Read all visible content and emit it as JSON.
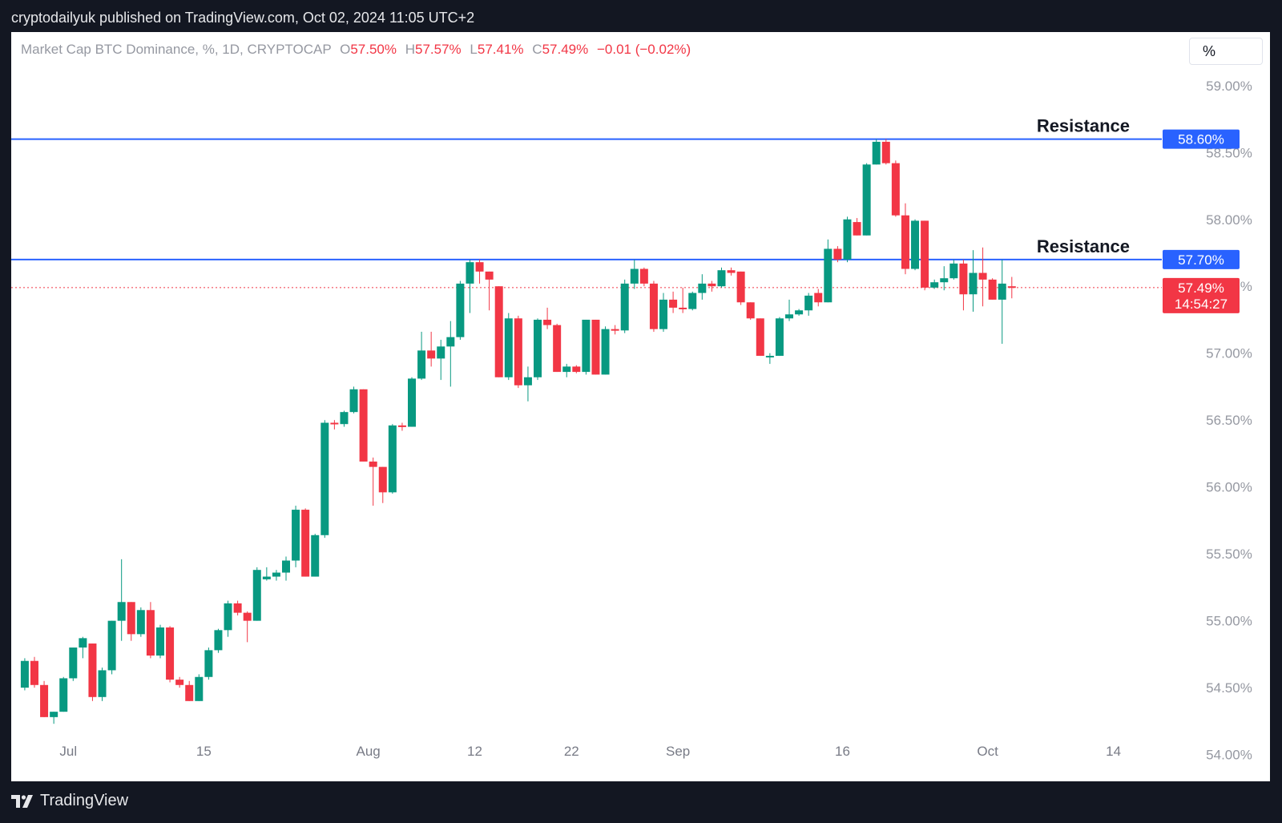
{
  "header": {
    "published_text": "cryptodailyuk published on TradingView.com, Oct 02, 2024 11:05 UTC+2"
  },
  "legend": {
    "symbol": "Market Cap BTC Dominance, %, 1D, CRYPTOCAP",
    "open_label": "O",
    "open": "57.50%",
    "high_label": "H",
    "high": "57.57%",
    "low_label": "L",
    "low": "57.41%",
    "close_label": "C",
    "close": "57.49%",
    "change": "−0.01 (−0.02%)"
  },
  "toolbar": {
    "scale_button": "%"
  },
  "footer": {
    "brand": "TradingView",
    "logo_icon": "tradingview-logo-icon"
  },
  "colors": {
    "up": "#089981",
    "down": "#f23645",
    "line": "#2962ff",
    "text_muted": "#9598a1"
  },
  "chart_data": {
    "type": "candlestick",
    "title": "Market Cap BTC Dominance, %, 1D, CRYPTOCAP",
    "ylim": [
      53.8,
      59.4
    ],
    "y_ticks": [
      "59.00%",
      "58.50%",
      "58.00%",
      "57.50%",
      "57.00%",
      "56.50%",
      "56.00%",
      "55.50%",
      "55.00%",
      "54.50%",
      "54.00%"
    ],
    "y_tick_values": [
      59.0,
      58.5,
      58.0,
      57.5,
      57.0,
      56.5,
      56.0,
      55.5,
      55.0,
      54.5,
      54.0
    ],
    "x_ticks": [
      "Jul",
      "15",
      "Aug",
      "12",
      "22",
      "Sep",
      "16",
      "Oct",
      "14"
    ],
    "x_tick_index": [
      4.5,
      18.5,
      35.5,
      46.5,
      56.5,
      67.5,
      84.5,
      99.5,
      112.5
    ],
    "x_range": [
      -1.4,
      117.5
    ],
    "candles": [
      {
        "o": 54.5,
        "h": 54.72,
        "l": 54.48,
        "c": 54.7
      },
      {
        "o": 54.7,
        "h": 54.73,
        "l": 54.5,
        "c": 54.52
      },
      {
        "o": 54.52,
        "h": 54.55,
        "l": 54.28,
        "c": 54.28
      },
      {
        "o": 54.28,
        "h": 54.32,
        "l": 54.23,
        "c": 54.32
      },
      {
        "o": 54.32,
        "h": 54.58,
        "l": 54.32,
        "c": 54.57
      },
      {
        "o": 54.57,
        "h": 54.8,
        "l": 54.55,
        "c": 54.8
      },
      {
        "o": 54.8,
        "h": 54.88,
        "l": 54.72,
        "c": 54.87
      },
      {
        "o": 54.83,
        "h": 54.83,
        "l": 54.4,
        "c": 54.43
      },
      {
        "o": 54.43,
        "h": 54.65,
        "l": 54.4,
        "c": 54.63
      },
      {
        "o": 54.63,
        "h": 55.0,
        "l": 54.6,
        "c": 55.0
      },
      {
        "o": 55.0,
        "h": 55.46,
        "l": 54.85,
        "c": 55.14
      },
      {
        "o": 55.14,
        "h": 55.14,
        "l": 54.85,
        "c": 54.9
      },
      {
        "o": 54.9,
        "h": 55.1,
        "l": 54.88,
        "c": 55.08
      },
      {
        "o": 55.08,
        "h": 55.14,
        "l": 54.72,
        "c": 54.74
      },
      {
        "o": 54.74,
        "h": 54.97,
        "l": 54.72,
        "c": 54.95
      },
      {
        "o": 54.95,
        "h": 54.96,
        "l": 54.54,
        "c": 54.56
      },
      {
        "o": 54.56,
        "h": 54.58,
        "l": 54.5,
        "c": 54.52
      },
      {
        "o": 54.52,
        "h": 54.55,
        "l": 54.4,
        "c": 54.4
      },
      {
        "o": 54.4,
        "h": 54.6,
        "l": 54.4,
        "c": 54.58
      },
      {
        "o": 54.58,
        "h": 54.8,
        "l": 54.56,
        "c": 54.78
      },
      {
        "o": 54.78,
        "h": 54.94,
        "l": 54.76,
        "c": 54.93
      },
      {
        "o": 54.93,
        "h": 55.15,
        "l": 54.88,
        "c": 55.13
      },
      {
        "o": 55.13,
        "h": 55.15,
        "l": 55.04,
        "c": 55.06
      },
      {
        "o": 55.06,
        "h": 55.07,
        "l": 54.84,
        "c": 55.0
      },
      {
        "o": 55.0,
        "h": 55.4,
        "l": 55.0,
        "c": 55.38
      },
      {
        "o": 55.31,
        "h": 55.4,
        "l": 55.3,
        "c": 55.33
      },
      {
        "o": 55.33,
        "h": 55.38,
        "l": 55.3,
        "c": 55.36
      },
      {
        "o": 55.36,
        "h": 55.48,
        "l": 55.3,
        "c": 55.45
      },
      {
        "o": 55.45,
        "h": 55.86,
        "l": 55.4,
        "c": 55.83
      },
      {
        "o": 55.83,
        "h": 55.84,
        "l": 55.33,
        "c": 55.33
      },
      {
        "o": 55.33,
        "h": 55.65,
        "l": 55.33,
        "c": 55.64
      },
      {
        "o": 55.64,
        "h": 56.5,
        "l": 55.62,
        "c": 56.48
      },
      {
        "o": 56.48,
        "h": 56.5,
        "l": 56.43,
        "c": 56.47
      },
      {
        "o": 56.47,
        "h": 56.57,
        "l": 56.45,
        "c": 56.56
      },
      {
        "o": 56.56,
        "h": 56.75,
        "l": 56.55,
        "c": 56.73
      },
      {
        "o": 56.73,
        "h": 56.73,
        "l": 56.19,
        "c": 56.19
      },
      {
        "o": 56.19,
        "h": 56.22,
        "l": 55.86,
        "c": 56.15
      },
      {
        "o": 56.15,
        "h": 56.15,
        "l": 55.88,
        "c": 55.96
      },
      {
        "o": 55.96,
        "h": 56.47,
        "l": 55.95,
        "c": 56.46
      },
      {
        "o": 56.46,
        "h": 56.48,
        "l": 56.42,
        "c": 56.45
      },
      {
        "o": 56.45,
        "h": 56.82,
        "l": 56.45,
        "c": 56.81
      },
      {
        "o": 56.81,
        "h": 57.16,
        "l": 56.8,
        "c": 57.02
      },
      {
        "o": 57.02,
        "h": 57.16,
        "l": 56.9,
        "c": 56.96
      },
      {
        "o": 56.96,
        "h": 57.1,
        "l": 56.8,
        "c": 57.05
      },
      {
        "o": 57.05,
        "h": 57.24,
        "l": 56.75,
        "c": 57.12
      },
      {
        "o": 57.12,
        "h": 57.54,
        "l": 57.1,
        "c": 57.52
      },
      {
        "o": 57.52,
        "h": 57.7,
        "l": 57.3,
        "c": 57.68
      },
      {
        "o": 57.68,
        "h": 57.7,
        "l": 57.52,
        "c": 57.61
      },
      {
        "o": 57.61,
        "h": 57.61,
        "l": 57.32,
        "c": 57.55
      },
      {
        "o": 57.5,
        "h": 57.5,
        "l": 56.82,
        "c": 56.82
      },
      {
        "o": 56.82,
        "h": 57.3,
        "l": 56.8,
        "c": 57.26
      },
      {
        "o": 57.26,
        "h": 57.28,
        "l": 56.74,
        "c": 56.76
      },
      {
        "o": 56.76,
        "h": 56.9,
        "l": 56.64,
        "c": 56.82
      },
      {
        "o": 56.82,
        "h": 57.26,
        "l": 56.8,
        "c": 57.25
      },
      {
        "o": 57.25,
        "h": 57.34,
        "l": 57.18,
        "c": 57.21
      },
      {
        "o": 57.21,
        "h": 57.22,
        "l": 56.86,
        "c": 56.86
      },
      {
        "o": 56.86,
        "h": 56.92,
        "l": 56.82,
        "c": 56.9
      },
      {
        "o": 56.9,
        "h": 56.91,
        "l": 56.85,
        "c": 56.86
      },
      {
        "o": 56.86,
        "h": 57.25,
        "l": 56.84,
        "c": 57.25
      },
      {
        "o": 57.25,
        "h": 57.25,
        "l": 56.84,
        "c": 56.84
      },
      {
        "o": 56.84,
        "h": 57.2,
        "l": 56.84,
        "c": 57.18
      },
      {
        "o": 57.18,
        "h": 57.21,
        "l": 57.14,
        "c": 57.17
      },
      {
        "o": 57.17,
        "h": 57.55,
        "l": 57.15,
        "c": 57.52
      },
      {
        "o": 57.52,
        "h": 57.7,
        "l": 57.48,
        "c": 57.63
      },
      {
        "o": 57.63,
        "h": 57.64,
        "l": 57.5,
        "c": 57.52
      },
      {
        "o": 57.52,
        "h": 57.54,
        "l": 57.16,
        "c": 57.18
      },
      {
        "o": 57.18,
        "h": 57.45,
        "l": 57.16,
        "c": 57.4
      },
      {
        "o": 57.4,
        "h": 57.46,
        "l": 57.3,
        "c": 57.34
      },
      {
        "o": 57.34,
        "h": 57.49,
        "l": 57.3,
        "c": 57.33
      },
      {
        "o": 57.33,
        "h": 57.46,
        "l": 57.32,
        "c": 57.45
      },
      {
        "o": 57.45,
        "h": 57.59,
        "l": 57.4,
        "c": 57.52
      },
      {
        "o": 57.52,
        "h": 57.54,
        "l": 57.46,
        "c": 57.5
      },
      {
        "o": 57.5,
        "h": 57.64,
        "l": 57.49,
        "c": 57.62
      },
      {
        "o": 57.62,
        "h": 57.64,
        "l": 57.58,
        "c": 57.6
      },
      {
        "o": 57.61,
        "h": 57.61,
        "l": 57.36,
        "c": 57.38
      },
      {
        "o": 57.38,
        "h": 57.38,
        "l": 57.25,
        "c": 57.26
      },
      {
        "o": 57.26,
        "h": 57.26,
        "l": 56.98,
        "c": 56.98
      },
      {
        "o": 56.98,
        "h": 57.0,
        "l": 56.92,
        "c": 56.98
      },
      {
        "o": 56.98,
        "h": 57.27,
        "l": 56.98,
        "c": 57.26
      },
      {
        "o": 57.26,
        "h": 57.4,
        "l": 57.24,
        "c": 57.29
      },
      {
        "o": 57.29,
        "h": 57.33,
        "l": 57.28,
        "c": 57.32
      },
      {
        "o": 57.32,
        "h": 57.45,
        "l": 57.28,
        "c": 57.43
      },
      {
        "o": 57.45,
        "h": 57.48,
        "l": 57.35,
        "c": 57.38
      },
      {
        "o": 57.38,
        "h": 57.85,
        "l": 57.38,
        "c": 57.78
      },
      {
        "o": 57.78,
        "h": 57.8,
        "l": 57.68,
        "c": 57.7
      },
      {
        "o": 57.7,
        "h": 58.02,
        "l": 57.68,
        "c": 58.0
      },
      {
        "o": 57.98,
        "h": 58.01,
        "l": 57.88,
        "c": 57.88
      },
      {
        "o": 57.88,
        "h": 58.42,
        "l": 57.88,
        "c": 58.41
      },
      {
        "o": 58.41,
        "h": 58.6,
        "l": 58.41,
        "c": 58.58
      },
      {
        "o": 58.58,
        "h": 58.6,
        "l": 58.41,
        "c": 58.42
      },
      {
        "o": 58.42,
        "h": 58.44,
        "l": 58.02,
        "c": 58.03
      },
      {
        "o": 58.03,
        "h": 58.12,
        "l": 57.59,
        "c": 57.63
      },
      {
        "o": 57.63,
        "h": 58.0,
        "l": 57.62,
        "c": 57.99
      },
      {
        "o": 57.99,
        "h": 57.99,
        "l": 57.47,
        "c": 57.49
      },
      {
        "o": 57.49,
        "h": 57.55,
        "l": 57.48,
        "c": 57.53
      },
      {
        "o": 57.53,
        "h": 57.65,
        "l": 57.47,
        "c": 57.56
      },
      {
        "o": 57.56,
        "h": 57.7,
        "l": 57.55,
        "c": 57.67
      },
      {
        "o": 57.67,
        "h": 57.7,
        "l": 57.32,
        "c": 57.44
      },
      {
        "o": 57.44,
        "h": 57.77,
        "l": 57.31,
        "c": 57.6
      },
      {
        "o": 57.6,
        "h": 57.79,
        "l": 57.35,
        "c": 57.55
      },
      {
        "o": 57.55,
        "h": 57.56,
        "l": 57.4,
        "c": 57.4
      },
      {
        "o": 57.4,
        "h": 57.7,
        "l": 57.07,
        "c": 57.52
      },
      {
        "o": 57.5,
        "h": 57.57,
        "l": 57.41,
        "c": 57.49
      }
    ],
    "horizontal_lines": [
      {
        "label": "Resistance",
        "value": 58.6,
        "tag": "58.60%"
      },
      {
        "label": "Resistance",
        "value": 57.7,
        "tag": "57.70%"
      }
    ],
    "last_price": {
      "value": 57.49,
      "tag": "57.49%",
      "countdown": "14:54:27"
    }
  }
}
